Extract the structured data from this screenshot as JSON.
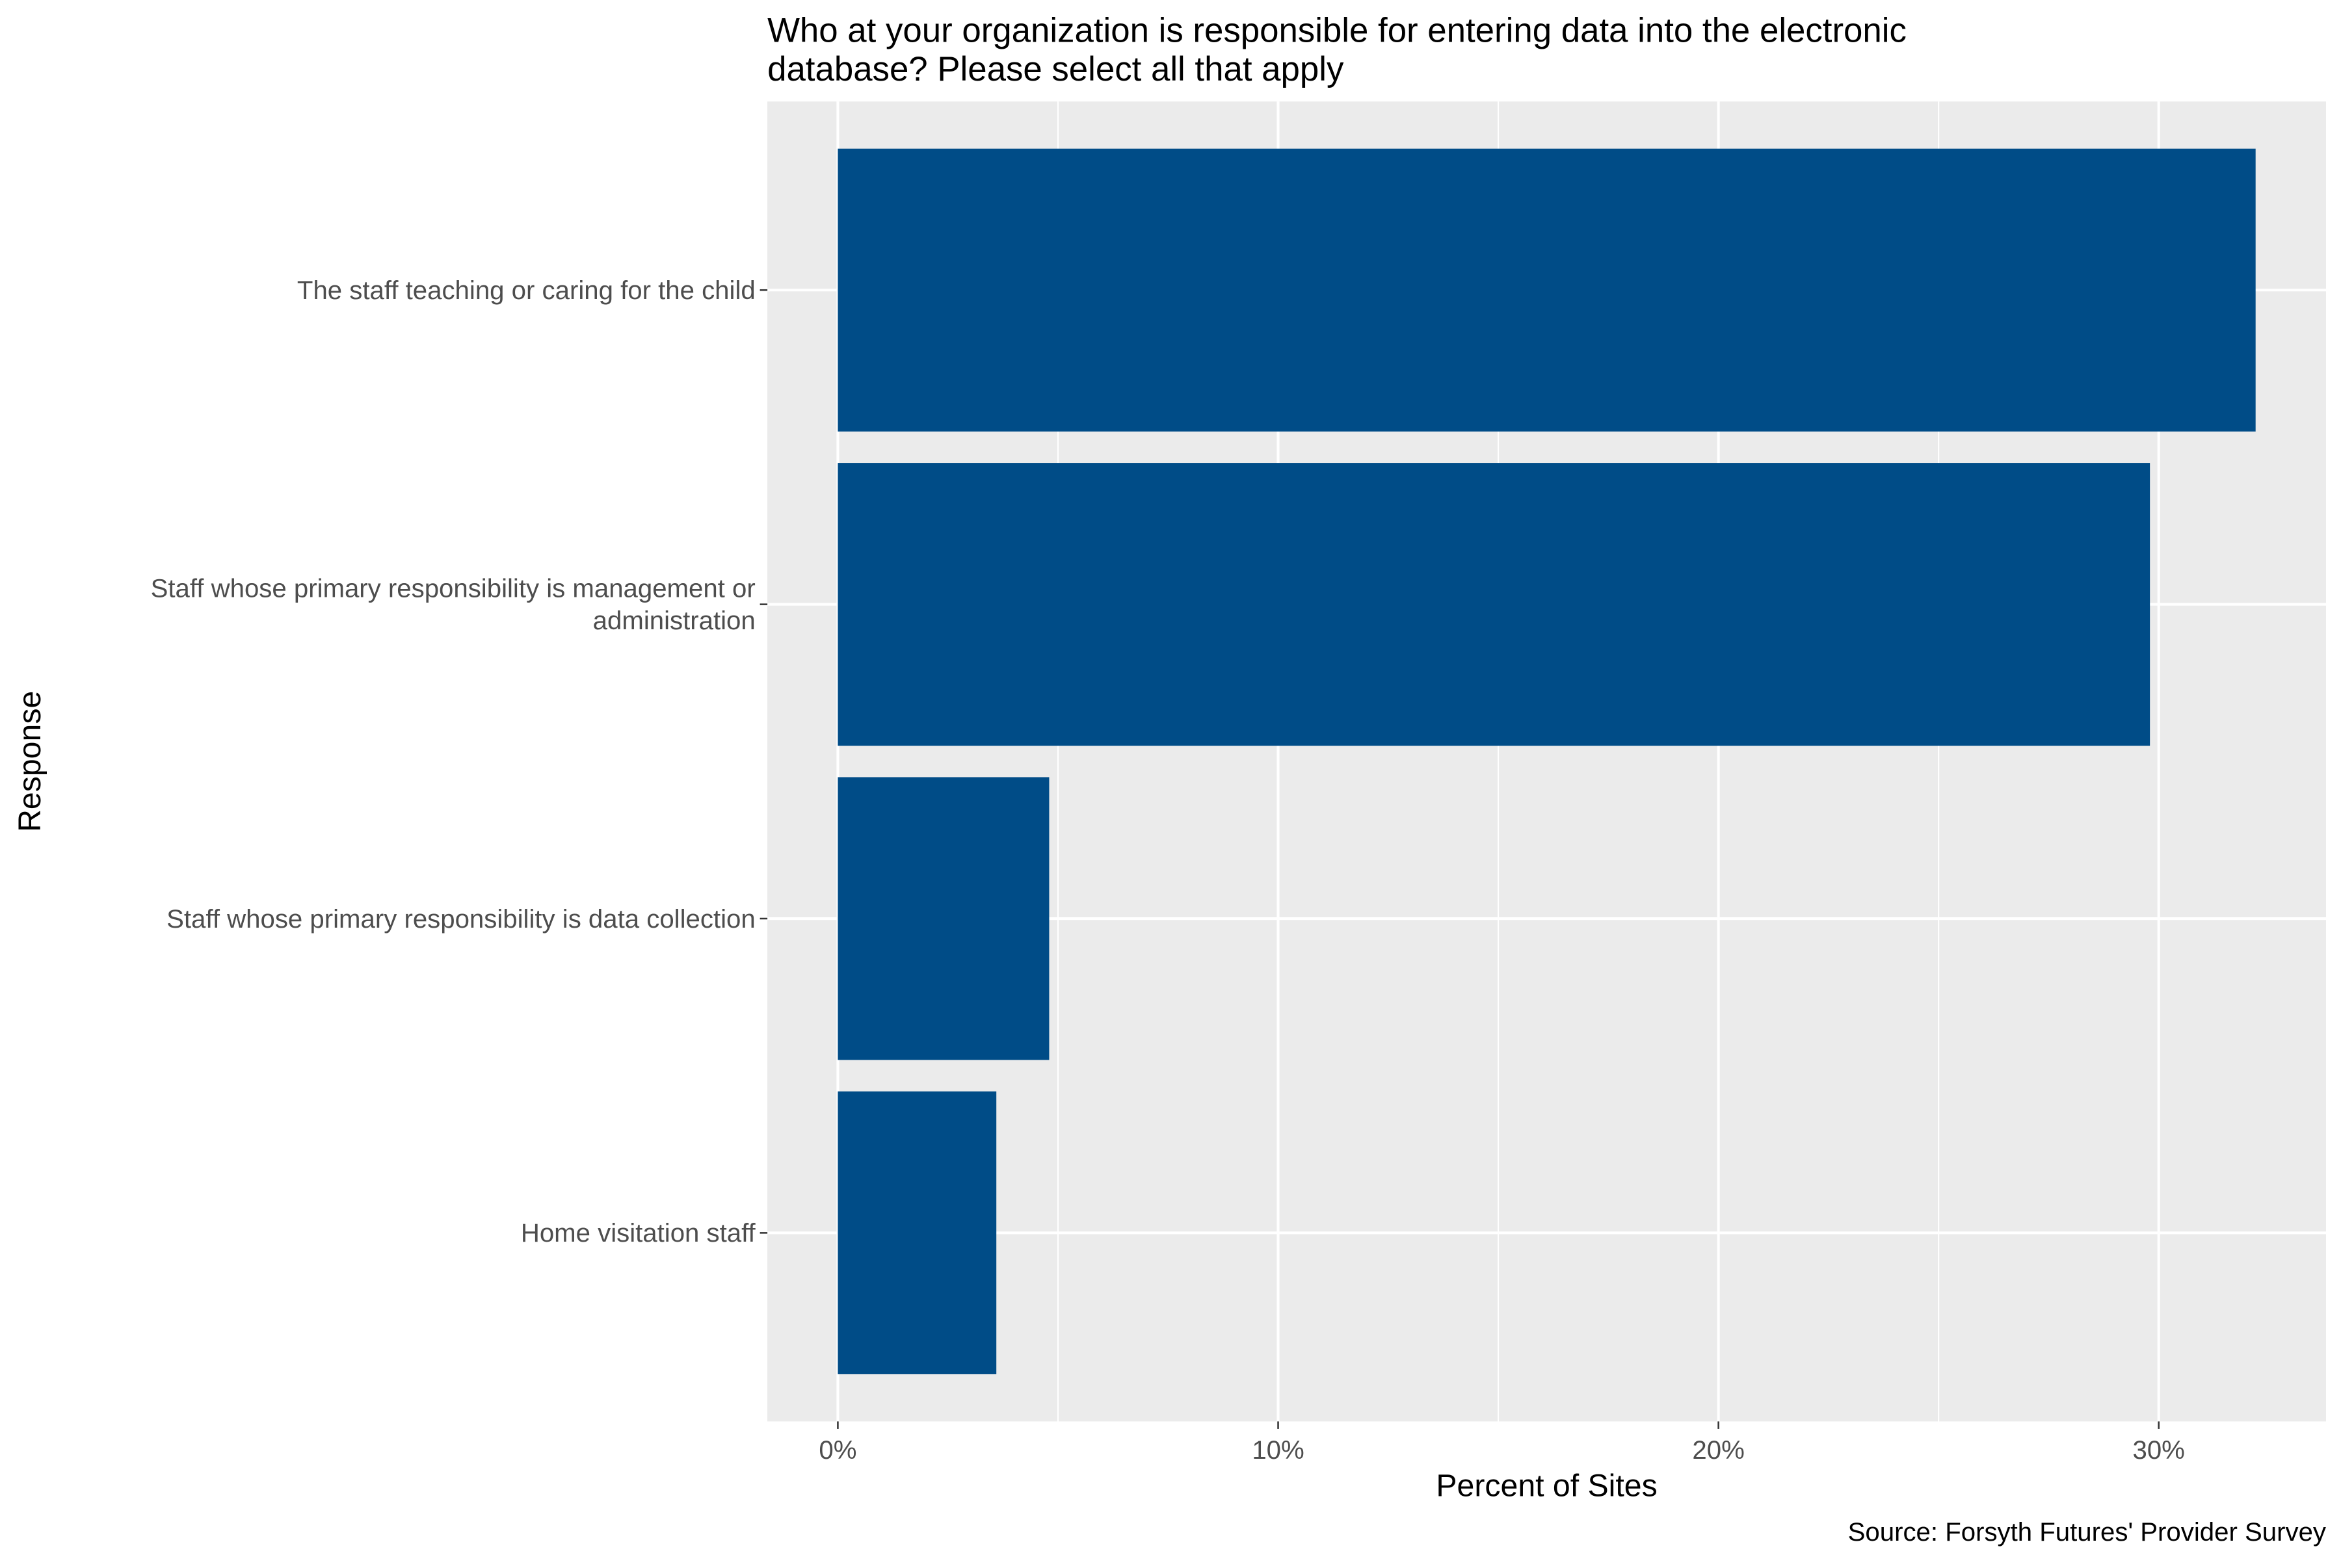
{
  "chart_data": {
    "type": "bar",
    "orientation": "horizontal",
    "title_lines": [
      "Who at your organization is responsible for entering data into the electronic",
      "database? Please select all that apply"
    ],
    "xlabel": "Percent of Sites",
    "ylabel": "Response",
    "caption": "Source: Forsyth Futures' Provider Survey",
    "categories": [
      [
        "The staff teaching or caring for the child"
      ],
      [
        "Staff whose primary responsibility is management or",
        "administration"
      ],
      [
        "Staff whose primary responsibility is data collection"
      ],
      [
        "Home visitation staff"
      ]
    ],
    "values": [
      32.2,
      29.8,
      4.8,
      3.6
    ],
    "xticks": [
      0,
      10,
      20,
      30
    ],
    "xtick_labels": [
      "0%",
      "10%",
      "20%",
      "30%"
    ],
    "xlim": [
      -1.6,
      33.8
    ],
    "bar_color": "#004c87",
    "panel_color": "#ebebeb",
    "grid": true,
    "legend": "none"
  }
}
